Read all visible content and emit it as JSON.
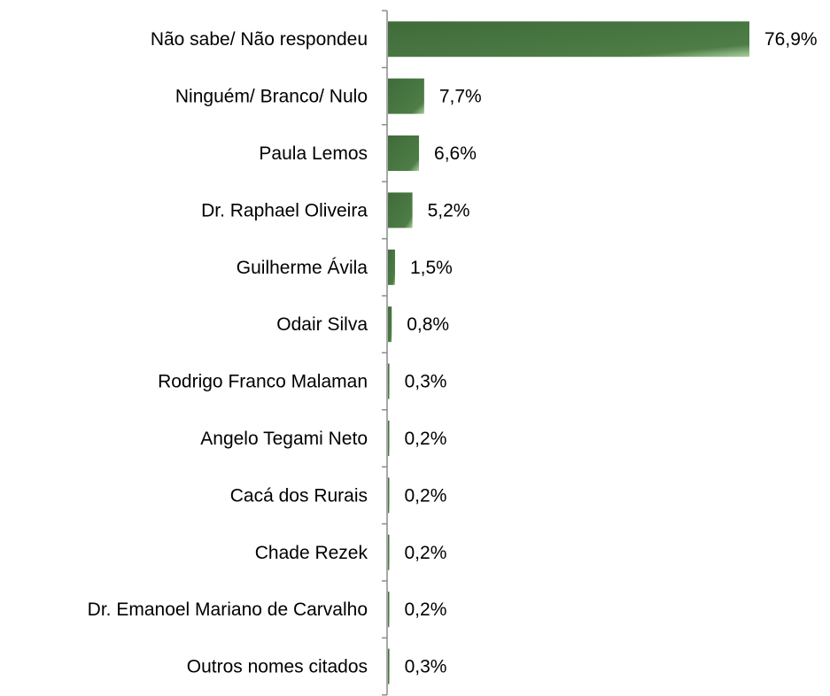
{
  "chart_data": {
    "type": "bar",
    "orientation": "horizontal",
    "categories": [
      "Não sabe/ Não respondeu",
      "Ninguém/ Branco/ Nulo",
      "Paula Lemos",
      "Dr. Raphael Oliveira",
      "Guilherme Ávila",
      "Odair Silva",
      "Rodrigo Franco Malaman",
      "Angelo Tegami Neto",
      "Cacá dos Rurais",
      "Chade Rezek",
      "Dr. Emanoel Mariano de Carvalho",
      "Outros nomes citados"
    ],
    "values": [
      76.9,
      7.7,
      6.6,
      5.2,
      1.5,
      0.8,
      0.3,
      0.2,
      0.2,
      0.2,
      0.2,
      0.3
    ],
    "value_labels": [
      "76,9%",
      "7,7%",
      "6,6%",
      "5,2%",
      "1,5%",
      "0,8%",
      "0,3%",
      "0,2%",
      "0,2%",
      "0,2%",
      "0,2%",
      "0,3%"
    ],
    "xlim": [
      0,
      80
    ],
    "grid": false,
    "legend": "none",
    "colors": {
      "bar_dark": "#3f6b3a",
      "bar_light": "#a9cf9e",
      "axis": "#8c8c8c"
    }
  }
}
